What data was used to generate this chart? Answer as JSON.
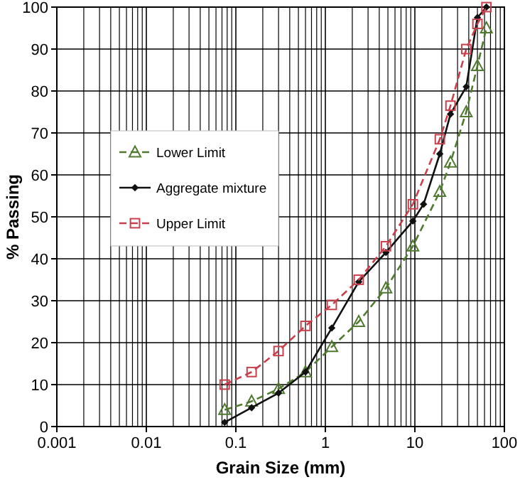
{
  "chart_data": {
    "type": "line",
    "xlabel": "Grain Size (mm)",
    "ylabel": "% Passing",
    "log": "x",
    "grid": true,
    "legend": "left",
    "xlim": [
      0.001,
      100
    ],
    "xticks": [
      0.001,
      0.01,
      0.1,
      1,
      10,
      100
    ],
    "ylim": [
      0,
      100
    ],
    "yticks": [
      0,
      10,
      20,
      30,
      40,
      50,
      60,
      70,
      80,
      90,
      100
    ],
    "series": [
      {
        "name": "Lower Limit",
        "color": "#4f7a30",
        "marker": "triangle",
        "line_style": "dashed",
        "x": [
          0.075,
          0.15,
          0.3,
          0.6,
          1.18,
          2.36,
          4.75,
          9.5,
          19,
          25,
          37.5,
          50,
          63
        ],
        "values": [
          4,
          6,
          9,
          13,
          19,
          25,
          33,
          43,
          56,
          63,
          75,
          86,
          95
        ]
      },
      {
        "name": "Aggregate mixture",
        "color": "#111111",
        "marker": "diamond",
        "line_style": "solid",
        "x": [
          0.075,
          0.15,
          0.3,
          0.6,
          1.18,
          2.36,
          4.75,
          9.5,
          12.5,
          19,
          25,
          37.5,
          50,
          63
        ],
        "values": [
          1,
          4.5,
          8,
          13,
          23.5,
          34.5,
          41.5,
          49,
          53,
          65,
          74.5,
          81,
          97.5,
          100
        ]
      },
      {
        "name": "Upper Limit",
        "color": "#c8404c",
        "marker": "square",
        "line_style": "dashed",
        "x": [
          0.075,
          0.15,
          0.3,
          0.6,
          1.18,
          2.36,
          4.75,
          9.5,
          19,
          25,
          37.5,
          50,
          63
        ],
        "values": [
          10,
          13,
          18,
          24,
          29,
          35,
          43,
          53,
          68.5,
          76.5,
          90,
          96,
          100
        ]
      }
    ]
  }
}
